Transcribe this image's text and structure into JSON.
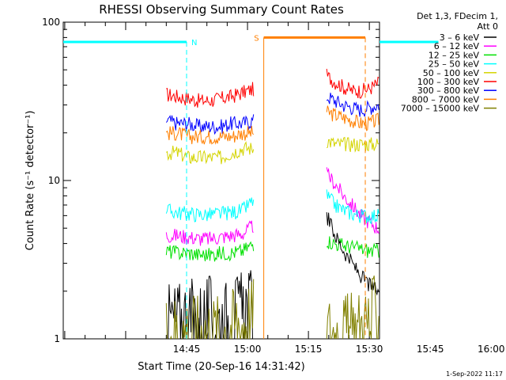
{
  "chart_data": {
    "type": "line",
    "title": "RHESSI Observing Summary Count Rates",
    "xlabel": "Start Time (20-Sep-16 14:31:42)",
    "ylabel": "Count Rate (s⁻¹ detector⁻¹)",
    "yscale": "log",
    "ylim": [
      1,
      100
    ],
    "x_range_minutes": [
      14.63,
      92.5
    ],
    "x_ticks": [
      {
        "label": "14:45",
        "minute": 45
      },
      {
        "label": "15:00",
        "minute": 60
      },
      {
        "label": "15:15",
        "minute": 75
      },
      {
        "label": "15:30",
        "minute": 90
      },
      {
        "label": "15:45",
        "minute": 105
      },
      {
        "label": "16:00",
        "minute": 120
      }
    ],
    "y_tick_labels": [
      "1",
      "10",
      "100"
    ],
    "data_gaps": [
      [
        61.5,
        79.5
      ]
    ],
    "legend": {
      "placement": "right",
      "header": [
        "Det 1,3, FDecim 1,",
        "Att 0"
      ],
      "entries": [
        {
          "label": "3 – 6 keV",
          "color": "#000000"
        },
        {
          "label": "6 – 12 keV",
          "color": "#ff00ff"
        },
        {
          "label": "12 – 25 keV",
          "color": "#00e000"
        },
        {
          "label": "25 – 50 keV",
          "color": "#00ffff"
        },
        {
          "label": "50 – 100 keV",
          "color": "#d4d400"
        },
        {
          "label": "100 – 300 keV",
          "color": "#ff0000"
        },
        {
          "label": "300 – 800 keV",
          "color": "#0000ff"
        },
        {
          "label": "800 – 7000 keV",
          "color": "#ff7f00"
        },
        {
          "label": "7000 – 15000 keV",
          "color": "#808000"
        }
      ]
    },
    "series": [
      {
        "name": "100 – 300 keV",
        "color": "#ff0000",
        "segments": [
          {
            "start": 40,
            "end": 61.5,
            "values": [
              35,
              34,
              33,
              32,
              32,
              33,
              34,
              36,
              38
            ]
          },
          {
            "start": 79.5,
            "end": 124,
            "values": [
              46,
              42,
              39,
              37,
              37,
              38,
              41,
              44,
              45,
              44,
              41,
              39
            ]
          }
        ]
      },
      {
        "name": "300 – 800 keV",
        "color": "#0000ff",
        "segments": [
          {
            "start": 40,
            "end": 61.5,
            "values": [
              24,
              23,
              23,
              22,
              22,
              22,
              23,
              23,
              24
            ]
          },
          {
            "start": 79.5,
            "end": 124,
            "values": [
              34,
              32,
              30,
              29,
              28,
              29,
              30,
              31,
              32,
              31,
              30,
              29
            ]
          }
        ]
      },
      {
        "name": "800 – 7000 keV",
        "color": "#ff7f00",
        "segments": [
          {
            "start": 40,
            "end": 61.5,
            "values": [
              20,
              20,
              19,
              19,
              19,
              19,
              19,
              20,
              20
            ]
          },
          {
            "start": 79.5,
            "end": 124,
            "values": [
              27,
              26,
              25,
              24,
              23,
              23,
              24,
              25,
              25,
              24,
              23,
              22
            ]
          }
        ]
      },
      {
        "name": "50 – 100 keV",
        "color": "#d4d400",
        "segments": [
          {
            "start": 40,
            "end": 61.5,
            "values": [
              15,
              15,
              14,
              14,
              14,
              14,
              15,
              16,
              16
            ]
          },
          {
            "start": 79.5,
            "end": 124,
            "values": [
              18,
              17,
              17,
              17,
              17,
              17,
              17,
              18,
              17,
              17,
              17,
              16
            ]
          }
        ]
      },
      {
        "name": "6 – 12 keV",
        "color": "#ff00ff",
        "segments": [
          {
            "start": 40,
            "end": 61.5,
            "values": [
              4.5,
              4.5,
              4.4,
              4.3,
              4.3,
              4.4,
              4.5,
              4.6,
              5.2
            ]
          },
          {
            "start": 79.5,
            "end": 124,
            "values": [
              11,
              9.5,
              8,
              7,
              6,
              5.5,
              5,
              5,
              4.8,
              4.8,
              4.8,
              4.8
            ]
          }
        ]
      },
      {
        "name": "25 – 50 keV",
        "color": "#00ffff",
        "segments": [
          {
            "start": 40,
            "end": 61.5,
            "values": [
              6.5,
              6.3,
              6.2,
              6.1,
              6.1,
              6.2,
              6.3,
              6.5,
              7.5
            ]
          },
          {
            "start": 79.5,
            "end": 124,
            "values": [
              8,
              7,
              6.5,
              6.2,
              6,
              6,
              6,
              6,
              6.1,
              6.1,
              6,
              6
            ]
          }
        ]
      },
      {
        "name": "12 – 25 keV",
        "color": "#00e000",
        "segments": [
          {
            "start": 40,
            "end": 61.5,
            "values": [
              3.6,
              3.5,
              3.5,
              3.4,
              3.4,
              3.5,
              3.5,
              3.6,
              4
            ]
          },
          {
            "start": 79.5,
            "end": 124,
            "values": [
              4.2,
              4,
              3.9,
              3.8,
              3.7,
              3.6,
              3.6,
              3.6,
              3.6,
              3.6,
              3.6,
              3.6
            ]
          }
        ]
      },
      {
        "name": "3 – 6 keV",
        "color": "#000000",
        "segments": [
          {
            "start": 40,
            "end": 61.5,
            "values": [
              1.3,
              1.3,
              1.4,
              1.3,
              1.4,
              1.3,
              1.4,
              1.5,
              1.6
            ]
          },
          {
            "start": 79.5,
            "end": 124,
            "values": [
              6,
              4.5,
              3.6,
              3,
              2.5,
              2.2,
              2,
              1.9,
              1.8,
              1.7,
              1.6,
              1.6
            ]
          }
        ]
      },
      {
        "name": "7000 – 15000 keV",
        "color": "#808000",
        "segments": [
          {
            "start": 40,
            "end": 61.5,
            "values": [
              1.1,
              1.1,
              1.1,
              1.1,
              1.1,
              1.1,
              1.2,
              1.3,
              1.4
            ]
          },
          {
            "start": 79.5,
            "end": 124,
            "values": [
              1.1,
              1.1,
              1.1,
              1.1,
              1.2,
              1.3,
              1.5,
              1.8,
              1.9,
              1.9,
              1.9,
              1.9
            ]
          }
        ]
      }
    ],
    "annotations": [
      {
        "label": "N",
        "color": "#00ffff",
        "level": 75,
        "bars": [
          [
            14.63,
            45
          ]
        ],
        "dashes": [
          45
        ]
      },
      {
        "label": "",
        "color": "#00ffff",
        "level": 75,
        "bars": [
          [
            107,
            123
          ]
        ],
        "dashes": [
          123
        ],
        "solid_lines": [
          107
        ]
      },
      {
        "label": "S",
        "color": "#ff7f00",
        "level": 80,
        "bars": [
          [
            64,
            89
          ]
        ],
        "dashes": [
          89
        ],
        "solid_lines": [
          64
        ]
      }
    ]
  },
  "footer": {
    "date_stamp": "1-Sep-2022 11:17"
  }
}
